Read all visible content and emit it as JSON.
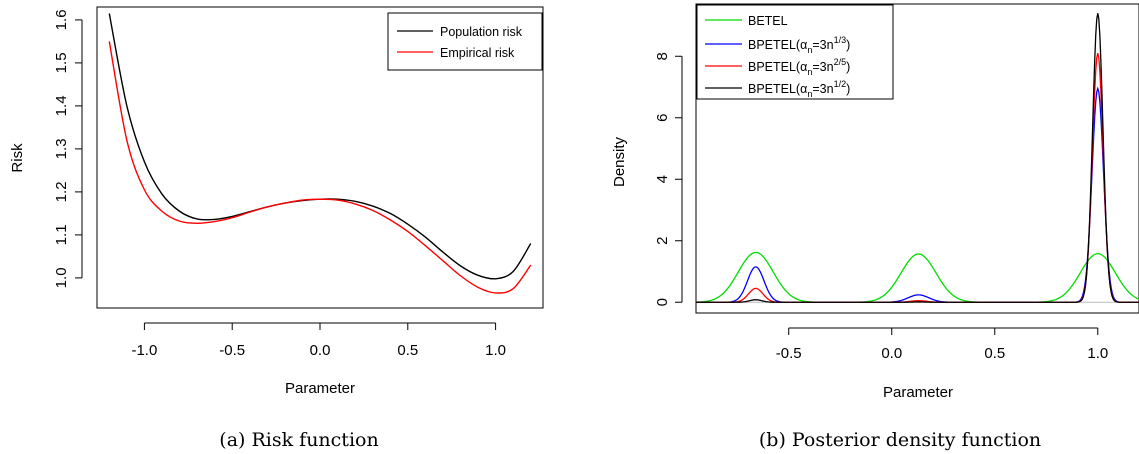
{
  "chart_data": [
    {
      "type": "line",
      "title": "",
      "caption": "(a) Risk function",
      "xlabel": "Parameter",
      "ylabel": "Risk",
      "xlim": [
        -1.27,
        1.27
      ],
      "ylim": [
        0.93,
        1.63
      ],
      "xticks": [
        -1.0,
        -0.5,
        0.0,
        0.5,
        1.0
      ],
      "xtick_labels": [
        "-1.0",
        "-0.5",
        "0.0",
        "0.5",
        "1.0"
      ],
      "yticks": [
        1.0,
        1.1,
        1.2,
        1.3,
        1.4,
        1.5,
        1.6
      ],
      "ytick_labels": [
        "1.0",
        "1.1",
        "1.2",
        "1.3",
        "1.4",
        "1.5",
        "1.6"
      ],
      "grid": false,
      "legend_position": "top-right",
      "series": [
        {
          "name": "Population risk",
          "color": "#000000",
          "x": [
            -1.2,
            -1.1,
            -1.0,
            -0.9,
            -0.8,
            -0.7,
            -0.6,
            -0.5,
            -0.4,
            -0.3,
            -0.2,
            -0.1,
            0.0,
            0.1,
            0.2,
            0.3,
            0.4,
            0.5,
            0.6,
            0.7,
            0.8,
            0.9,
            1.0,
            1.1,
            1.2
          ],
          "y": [
            1.615,
            1.4,
            1.27,
            1.195,
            1.155,
            1.137,
            1.136,
            1.143,
            1.154,
            1.165,
            1.174,
            1.18,
            1.183,
            1.183,
            1.178,
            1.167,
            1.15,
            1.125,
            1.095,
            1.06,
            1.028,
            1.006,
            0.998,
            1.015,
            1.08
          ]
        },
        {
          "name": "Empirical risk",
          "color": "#ff0000",
          "x": [
            -1.2,
            -1.1,
            -1.0,
            -0.9,
            -0.8,
            -0.7,
            -0.6,
            -0.5,
            -0.4,
            -0.3,
            -0.2,
            -0.1,
            0.0,
            0.1,
            0.2,
            0.3,
            0.4,
            0.5,
            0.6,
            0.7,
            0.8,
            0.9,
            1.0,
            1.1,
            1.2
          ],
          "y": [
            1.55,
            1.32,
            1.205,
            1.155,
            1.132,
            1.127,
            1.131,
            1.14,
            1.153,
            1.165,
            1.174,
            1.181,
            1.183,
            1.181,
            1.172,
            1.157,
            1.135,
            1.108,
            1.075,
            1.04,
            1.005,
            0.978,
            0.965,
            0.975,
            1.03
          ]
        }
      ]
    },
    {
      "type": "line",
      "title": "",
      "caption": "(b) Posterior density function",
      "xlabel": "Parameter",
      "ylabel": "Density",
      "xlim": [
        -0.95,
        1.2
      ],
      "ylim": [
        -0.35,
        9.7
      ],
      "xticks": [
        -0.5,
        0.0,
        0.5,
        1.0
      ],
      "xtick_labels": [
        "-0.5",
        "0.0",
        "0.5",
        "1.0"
      ],
      "yticks": [
        0,
        2,
        4,
        6,
        8
      ],
      "ytick_labels": [
        "0",
        "2",
        "4",
        "6",
        "8"
      ],
      "grid": false,
      "legend_position": "top-left",
      "series": [
        {
          "name": "BETEL",
          "label_base": "BETEL",
          "label_sub": "",
          "label_sup": "",
          "color": "#00dd00"
        },
        {
          "name": "BPETEL(αn=3n1/3)",
          "label_base": "BPETEL(α",
          "label_sub": "n",
          "label_mid": "=3n",
          "label_sup": "1/3",
          "label_end": ")",
          "color": "#0000ff"
        },
        {
          "name": "BPETEL(αn=3n2/5)",
          "label_base": "BPETEL(α",
          "label_sub": "n",
          "label_mid": "=3n",
          "label_sup": "2/5",
          "label_end": ")",
          "color": "#ff0000"
        },
        {
          "name": "BPETEL(αn=3n1/2)",
          "label_base": "BPETEL(α",
          "label_sub": "n",
          "label_mid": "=3n",
          "label_sup": "1/2",
          "label_end": ")",
          "color": "#000000"
        }
      ],
      "modes": {
        "BETEL": [
          {
            "center": -0.66,
            "height": 1.62,
            "width": 0.085
          },
          {
            "center": 0.13,
            "height": 1.57,
            "width": 0.085
          },
          {
            "center": 1.0,
            "height": 1.58,
            "width": 0.085
          }
        ],
        "BPETEL(αn=3n1/3)": [
          {
            "center": -0.66,
            "height": 1.15,
            "width": 0.04
          },
          {
            "center": 0.13,
            "height": 0.24,
            "width": 0.05
          },
          {
            "center": 1.0,
            "height": 6.95,
            "width": 0.028
          }
        ],
        "BPETEL(αn=3n2/5)": [
          {
            "center": -0.66,
            "height": 0.45,
            "width": 0.035
          },
          {
            "center": 0.13,
            "height": 0.05,
            "width": 0.04
          },
          {
            "center": 1.0,
            "height": 8.1,
            "width": 0.026
          }
        ],
        "BPETEL(αn=3n1/2)": [
          {
            "center": -0.66,
            "height": 0.08,
            "width": 0.03
          },
          {
            "center": 0.13,
            "height": 0.01,
            "width": 0.03
          },
          {
            "center": 1.0,
            "height": 9.4,
            "width": 0.025
          }
        ]
      }
    }
  ]
}
